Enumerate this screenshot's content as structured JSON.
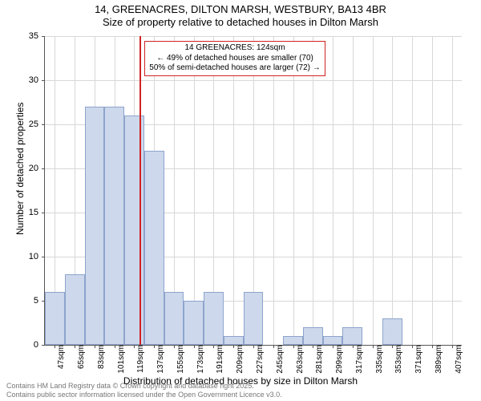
{
  "title_line1": "14, GREENACRES, DILTON MARSH, WESTBURY, BA13 4BR",
  "title_line2": "Size of property relative to detached houses in Dilton Marsh",
  "ylabel": "Number of detached properties",
  "xlabel": "Distribution of detached houses by size in Dilton Marsh",
  "footer_line1": "Contains HM Land Registry data © Crown copyright and database right 2025.",
  "footer_line2": "Contains public sector information licensed under the Open Government Licence v3.0.",
  "chart": {
    "type": "histogram",
    "ylim": [
      0,
      35
    ],
    "ytick_step": 5,
    "x_start": 38,
    "x_end": 416,
    "x_tick_start": 47,
    "x_tick_step": 18,
    "x_tick_count": 21,
    "x_tick_unit": "sqm",
    "bin_edges": [
      38,
      56,
      74,
      92,
      110,
      128,
      146,
      164,
      182,
      200,
      218,
      236,
      254,
      272,
      290,
      308,
      326,
      344,
      362,
      380,
      398,
      416
    ],
    "counts": [
      6,
      8,
      27,
      27,
      26,
      22,
      6,
      5,
      6,
      1,
      6,
      0,
      1,
      2,
      1,
      2,
      0,
      3,
      0,
      0,
      0
    ],
    "bar_fill": "#cdd8ec",
    "bar_stroke": "#8ea4cc",
    "grid_color": "#d8d8d8",
    "background": "#ffffff",
    "ref_value_x": 124,
    "ref_color": "#d02323",
    "annotation": {
      "line1": "14 GREENACRES: 124sqm",
      "line2": "← 49% of detached houses are smaller (70)",
      "line3": "50% of semi-detached houses are larger (72) →"
    }
  }
}
